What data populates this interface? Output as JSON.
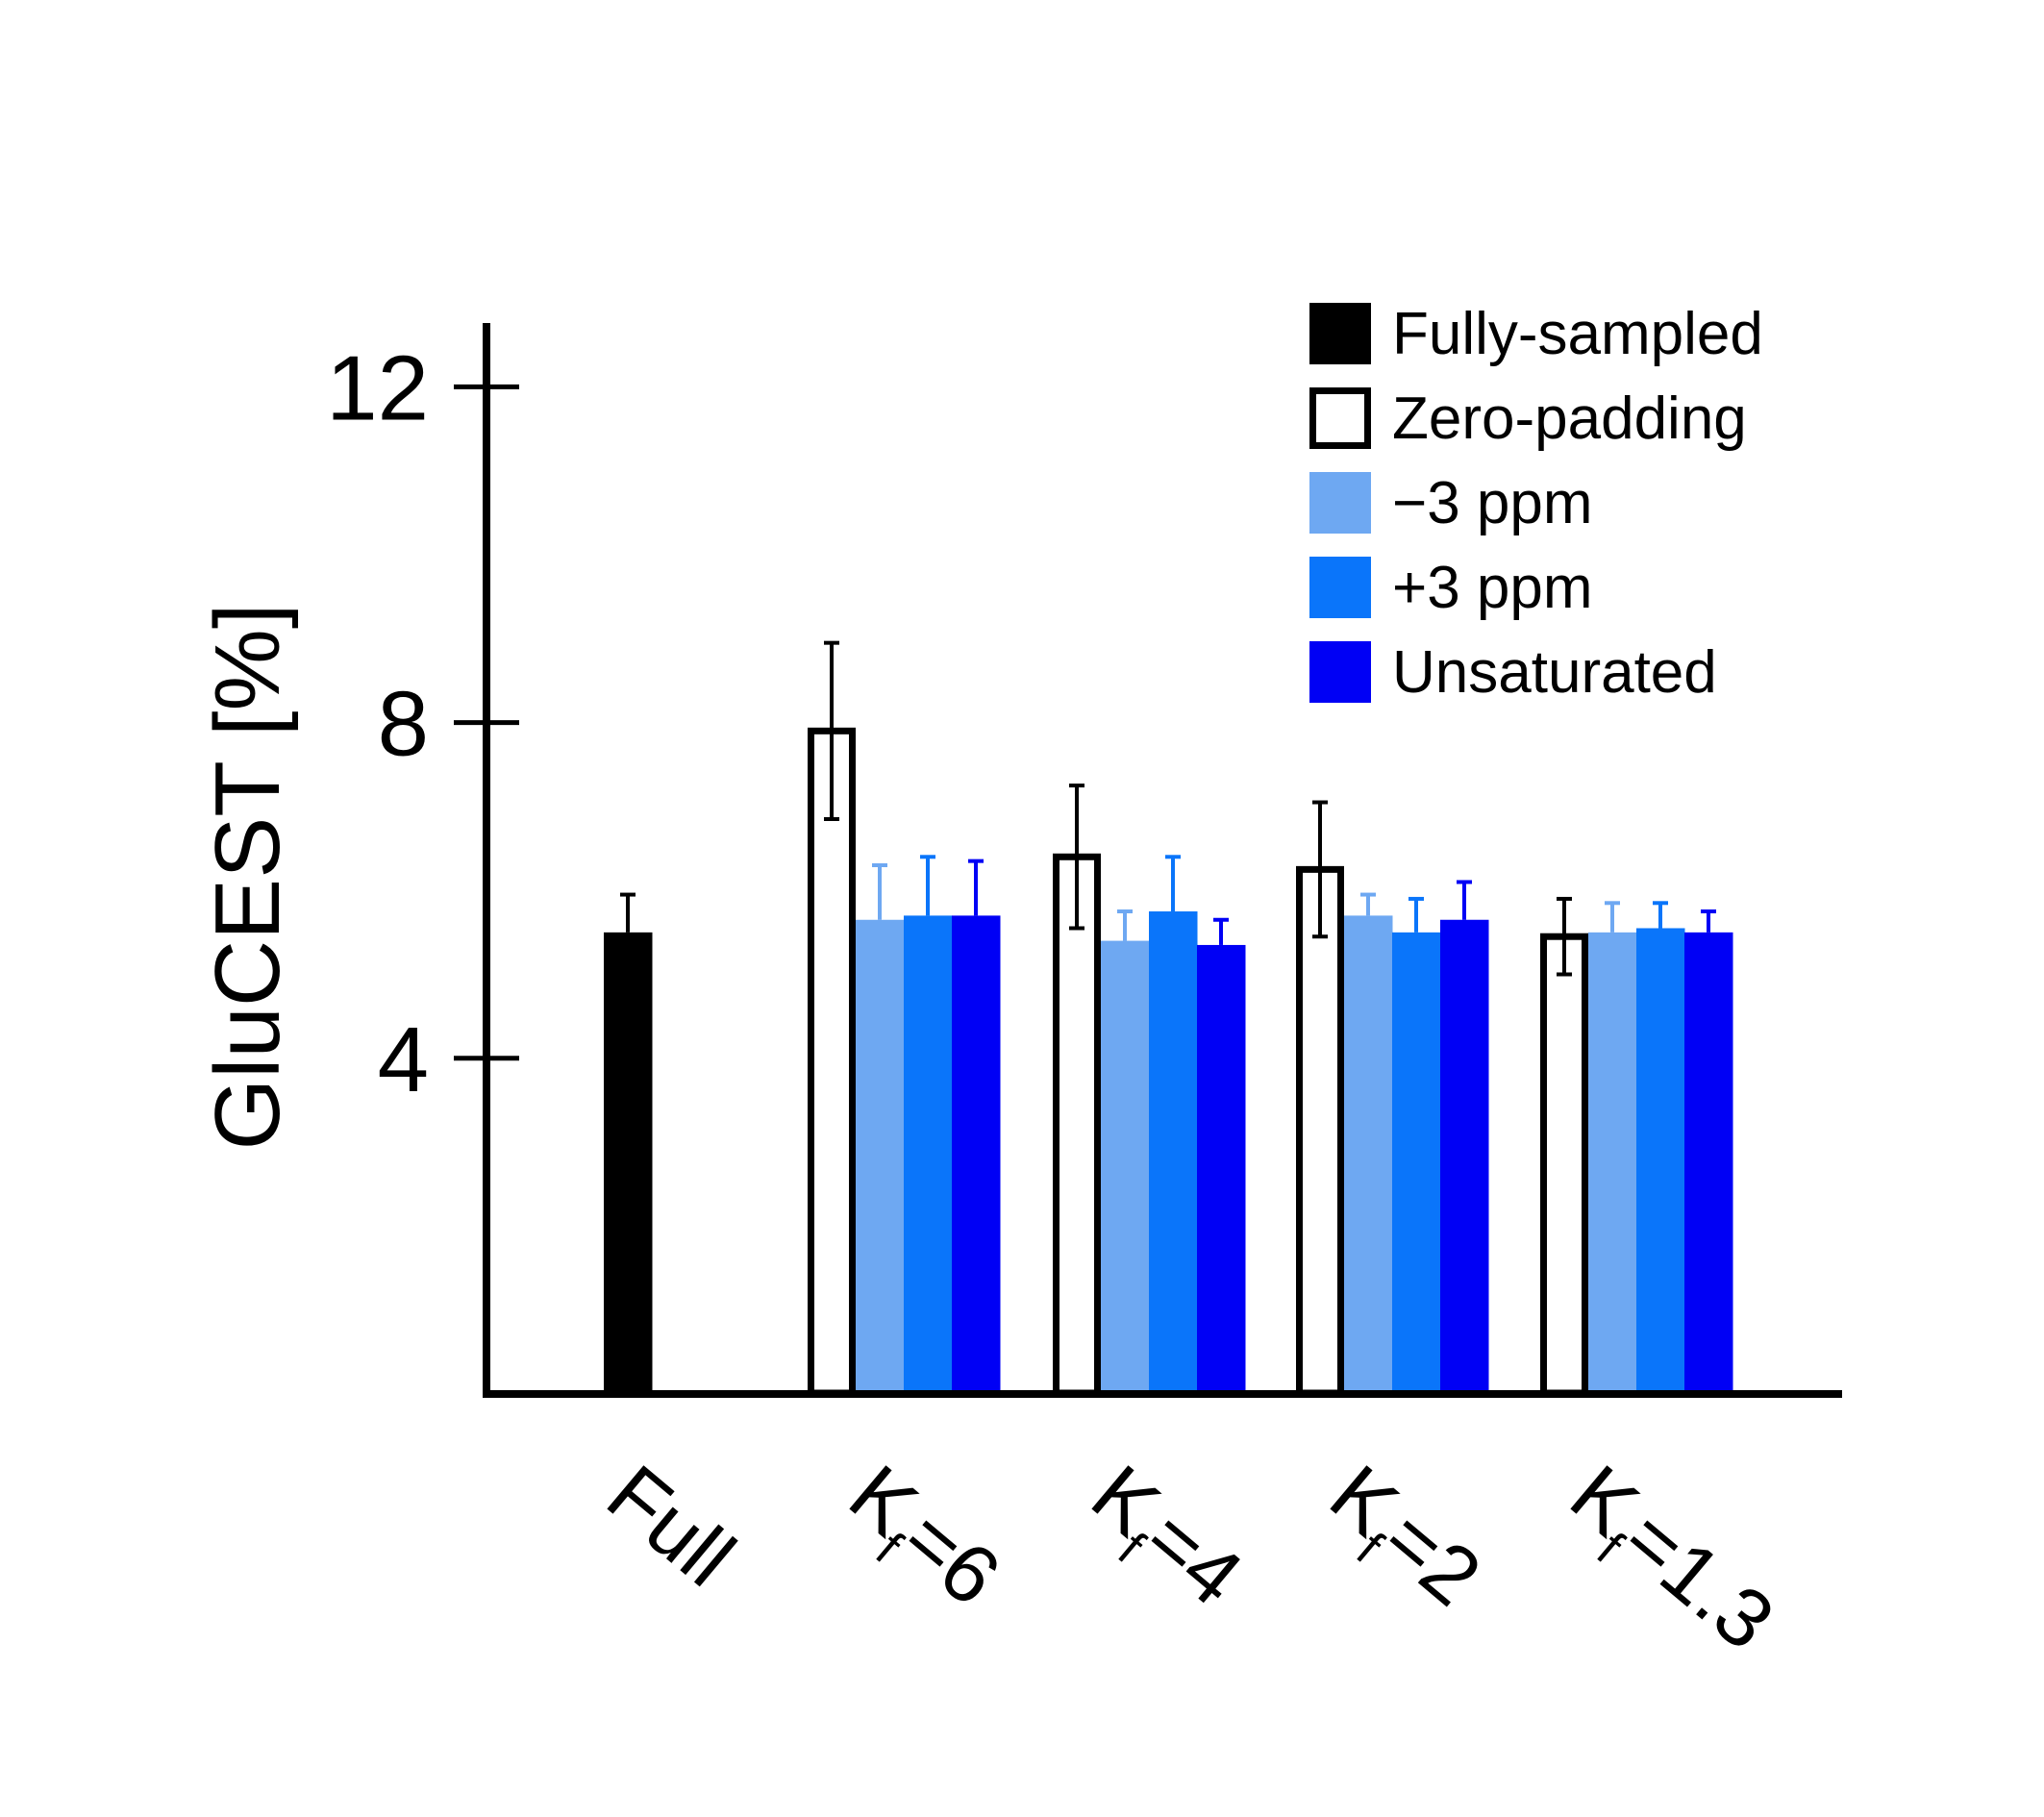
{
  "chart_data": {
    "type": "bar",
    "title": "",
    "xlabel": "",
    "ylabel": "GluCEST [%]",
    "ylim": [
      0,
      12.8
    ],
    "yticks": [
      4,
      8,
      12
    ],
    "grid": false,
    "legend_position": "top-right",
    "categories": [
      {
        "main": "Full",
        "sub": "",
        "rest": ""
      },
      {
        "main": "K",
        "sub": "f",
        "rest": "=6"
      },
      {
        "main": "K",
        "sub": "f",
        "rest": "=4"
      },
      {
        "main": "K",
        "sub": "f",
        "rest": "=2"
      },
      {
        "main": "K",
        "sub": "f",
        "rest": "=1.3"
      }
    ],
    "series": [
      {
        "name": "Fully-sampled",
        "color": "#000000",
        "fill": "solid",
        "values": [
          5.5,
          null,
          null,
          null,
          null
        ],
        "errors": [
          0.45,
          null,
          null,
          null,
          null
        ]
      },
      {
        "name": "Zero-padding",
        "color": "#000000",
        "fill": "outline",
        "values": [
          null,
          7.9,
          6.4,
          6.25,
          5.45
        ],
        "errors": [
          null,
          1.05,
          0.85,
          0.8,
          0.45
        ]
      },
      {
        "name": "−3 ppm",
        "color": "#6ea8f2",
        "fill": "solid",
        "values": [
          null,
          5.65,
          5.4,
          5.7,
          5.5
        ],
        "errors": [
          null,
          0.65,
          0.35,
          0.25,
          0.35
        ]
      },
      {
        "name": "+3 ppm",
        "color": "#0a75fa",
        "fill": "solid",
        "values": [
          null,
          5.7,
          5.75,
          5.5,
          5.55
        ],
        "errors": [
          null,
          0.7,
          0.65,
          0.4,
          0.3
        ]
      },
      {
        "name": "Unsaturated",
        "color": "#0000f5",
        "fill": "solid",
        "values": [
          null,
          5.7,
          5.35,
          5.65,
          5.5
        ],
        "errors": [
          null,
          0.65,
          0.3,
          0.45,
          0.25
        ]
      }
    ]
  }
}
